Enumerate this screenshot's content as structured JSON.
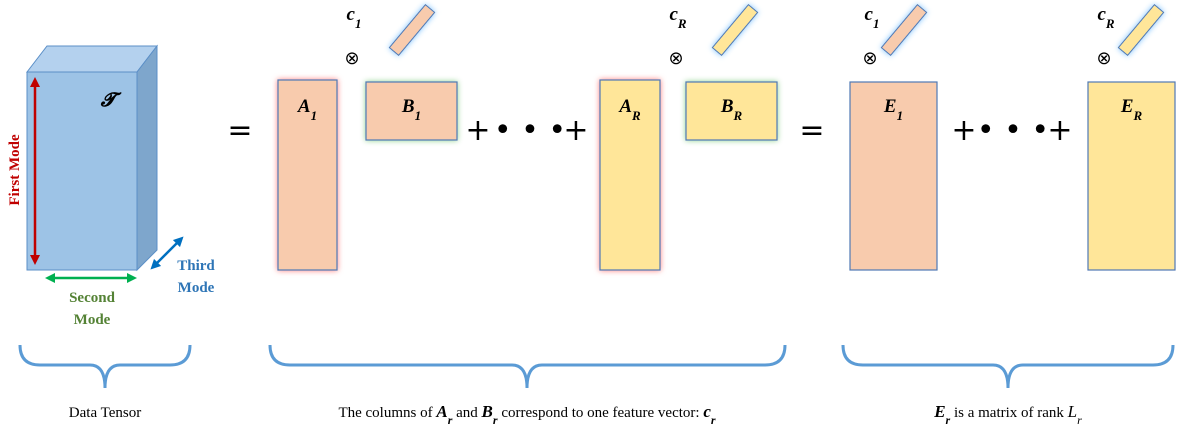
{
  "tensor": {
    "symbol": "𝓣",
    "first_mode": "First Mode",
    "second_mode": [
      "Second",
      "Mode"
    ],
    "third_mode": [
      "Third",
      "Mode"
    ]
  },
  "operators": {
    "equals": "=",
    "plus": "+",
    "ellipsis": "• • •",
    "kron": "⊗"
  },
  "matrices": [
    {
      "base": "A",
      "sub": "1"
    },
    {
      "base": "B",
      "sub": "1"
    },
    {
      "base": "A",
      "sub": "R"
    },
    {
      "base": "B",
      "sub": "R"
    },
    {
      "base": "E",
      "sub": "1"
    },
    {
      "base": "E",
      "sub": "R"
    }
  ],
  "vectors": [
    {
      "base": "c",
      "sub": "1"
    },
    {
      "base": "c",
      "sub": "R"
    }
  ],
  "captions": [
    [
      "Data Tensor"
    ],
    [
      "The columns of ",
      {
        "base": "A",
        "sub": "r"
      },
      " and ",
      {
        "base": "B",
        "sub": "r"
      },
      " correspond to one feature vector: ",
      {
        "base": "c",
        "sub": "r"
      }
    ],
    [
      {
        "base": "E",
        "sub": "r"
      },
      " is a matrix of rank ",
      {
        "base": "L",
        "sub": "r",
        "bold": false
      }
    ]
  ]
}
